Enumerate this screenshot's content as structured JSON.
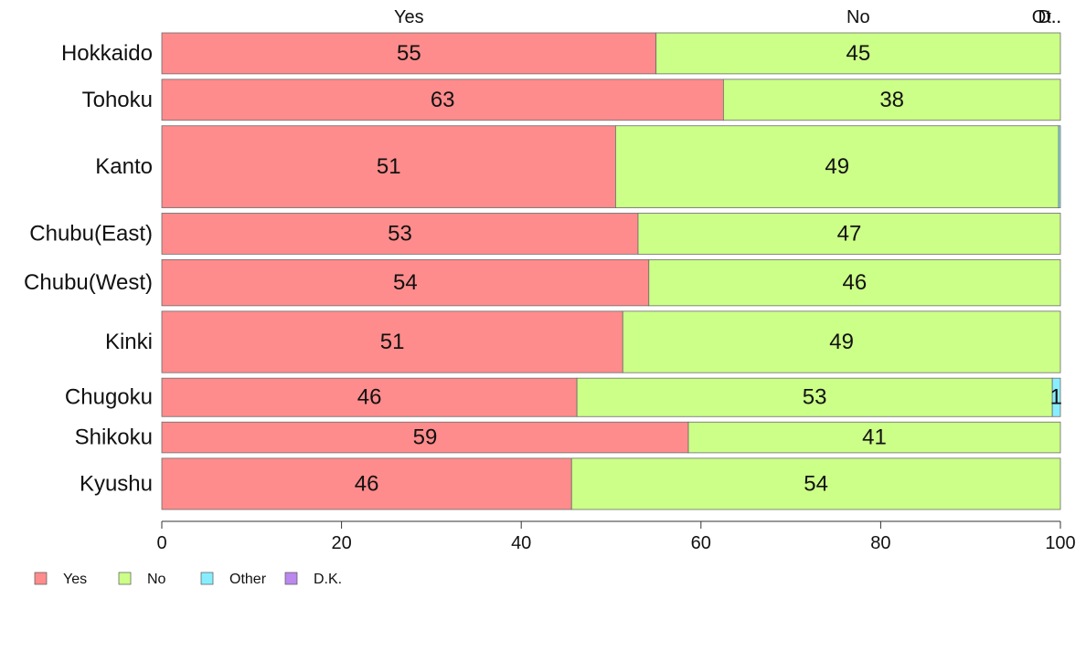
{
  "chart_data": {
    "type": "bar",
    "orientation": "horizontal-stacked",
    "x": {
      "min": 0,
      "max": 100,
      "ticks": [
        "0",
        "20",
        "40",
        "60",
        "80",
        "100"
      ]
    },
    "column_headers": [
      "Yes",
      "No",
      "Ot..",
      "D.."
    ],
    "categories": [
      "Hokkaido",
      "Tohoku",
      "Kanto",
      "Chubu(East)",
      "Chubu(West)",
      "Kinki",
      "Chugoku",
      "Shikoku",
      "Kyushu"
    ],
    "relative_row_weights": [
      0.8,
      0.8,
      1.6,
      0.8,
      0.9,
      1.2,
      0.75,
      0.6,
      1.0
    ],
    "series": [
      {
        "name": "Yes",
        "color": "#FF8C8C",
        "values": [
          55,
          62.5,
          50.5,
          53,
          54.2,
          51.3,
          46.2,
          58.6,
          45.6
        ]
      },
      {
        "name": "No",
        "color": "#CCFF88",
        "values": [
          45,
          37.5,
          49.3,
          47,
          45.8,
          48.7,
          52.9,
          41.4,
          54.4
        ]
      },
      {
        "name": "Other",
        "color": "#88EEFF",
        "values": [
          0,
          0,
          0.2,
          0,
          0,
          0,
          0.9,
          0,
          0
        ]
      },
      {
        "name": "D.K.",
        "color": "#BB88EE",
        "values": [
          0,
          0,
          0,
          0,
          0,
          0,
          0,
          0,
          0
        ]
      }
    ],
    "data_labels": [
      [
        "55",
        "45",
        "",
        ""
      ],
      [
        "63",
        "38",
        "",
        ""
      ],
      [
        "51",
        "49",
        "",
        ""
      ],
      [
        "53",
        "47",
        "",
        ""
      ],
      [
        "54",
        "46",
        "",
        ""
      ],
      [
        "51",
        "49",
        "",
        ""
      ],
      [
        "46",
        "53",
        "1",
        ""
      ],
      [
        "59",
        "41",
        "",
        ""
      ],
      [
        "46",
        "54",
        "",
        ""
      ]
    ],
    "legend": {
      "position": "bottom-left",
      "items": [
        "Yes",
        "No",
        "Other",
        "D.K."
      ]
    },
    "grid": false,
    "title": "",
    "xlabel": "",
    "ylabel": ""
  }
}
